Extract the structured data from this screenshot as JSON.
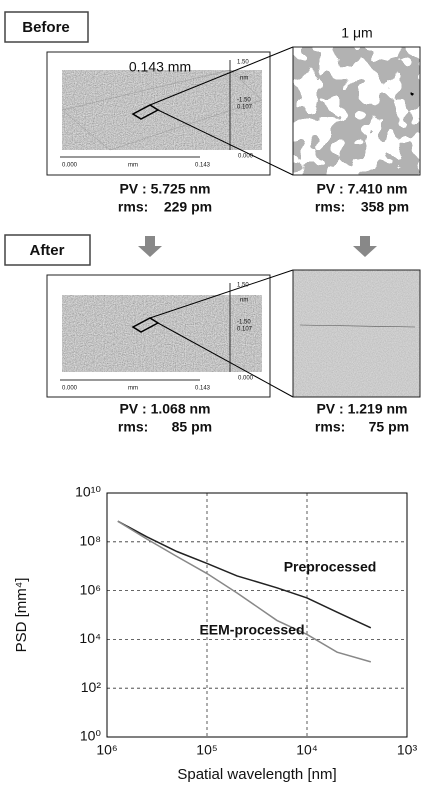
{
  "panels": {
    "before": {
      "label": "Before",
      "scan_size": "0.143 mm",
      "afm_size": "1 μm",
      "left": {
        "pv": "PV : 5.725 nm",
        "rms": "rms:    229 pm"
      },
      "right": {
        "pv": "PV : 7.410 nm",
        "rms": "rms:    358 pm"
      }
    },
    "after": {
      "label": "After",
      "left": {
        "pv": "PV : 1.068 nm",
        "rms": "rms:      85 pm"
      },
      "right": {
        "pv": "PV : 1.219 nm",
        "rms": "rms:      75 pm"
      }
    },
    "plot3d_labels": {
      "origin": "0.000",
      "unit": "mm",
      "end": "0.143",
      "z_low": "-1.50",
      "z_high": "1.50",
      "depth": "0.107",
      "z_unit": "nm"
    }
  },
  "chart_data": {
    "type": "line",
    "xlabel": "Spatial wavelength [nm]",
    "ylabel": "PSD [mm⁴]",
    "log_x": true,
    "log_y": true,
    "grid": true,
    "xlim": [
      1000000,
      1000
    ],
    "ylim": [
      1,
      10000000000
    ],
    "xticks": [
      {
        "value": 1000000,
        "label": "10⁶"
      },
      {
        "value": 100000,
        "label": "10⁵"
      },
      {
        "value": 10000,
        "label": "10⁴"
      },
      {
        "value": 1000,
        "label": "10³"
      }
    ],
    "yticks": [
      {
        "value": 1,
        "label": "10⁰"
      },
      {
        "value": 100,
        "label": "10²"
      },
      {
        "value": 10000,
        "label": "10⁴"
      },
      {
        "value": 1000000,
        "label": "10⁶"
      },
      {
        "value": 100000000,
        "label": "10⁸"
      },
      {
        "value": 10000000000,
        "label": "10¹⁰"
      }
    ],
    "x": [
      780000,
      400000,
      200000,
      100000,
      50000,
      20000,
      10000,
      5000,
      2300
    ],
    "series": [
      {
        "name": "Preprocessed",
        "color": "#222222",
        "values": [
          700000000,
          160000000,
          40000000,
          13000000,
          4000000,
          1300000,
          500000,
          130000,
          30000
        ]
      },
      {
        "name": "EEM-processed",
        "color": "#888888",
        "values": [
          700000000,
          130000000,
          25000000,
          5000000,
          800000,
          60000,
          16000,
          3000,
          1200
        ]
      }
    ]
  }
}
